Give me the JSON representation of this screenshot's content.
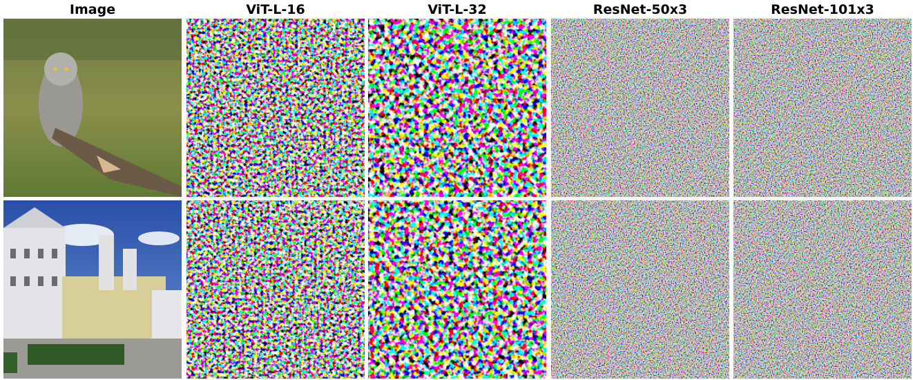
{
  "columns": [
    "Image",
    "ViT-L-16",
    "ViT-L-32",
    "ResNet-50x3",
    "ResNet-101x3"
  ]
}
